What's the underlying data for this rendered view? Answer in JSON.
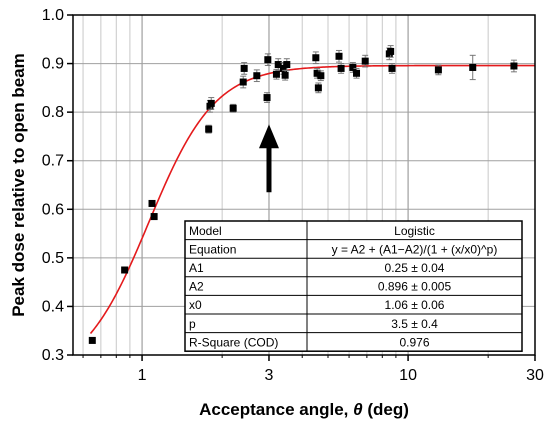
{
  "chart_data": {
    "type": "scatter",
    "title": "",
    "xlabel": "Acceptance angle, ",
    "xlabel_symbol": "θ",
    "xlabel_unit": " (deg)",
    "ylabel": "Peak dose relative to open beam",
    "x_scale": "log",
    "xlim": [
      0.55,
      30
    ],
    "ylim": [
      0.3,
      1.0
    ],
    "x_ticks": [
      {
        "value": 1,
        "label": "1"
      },
      {
        "value": 3,
        "label": "3"
      },
      {
        "value": 10,
        "label": "10"
      },
      {
        "value": 30,
        "label": "30"
      }
    ],
    "y_ticks": [
      {
        "value": 0.3,
        "label": "0.3"
      },
      {
        "value": 0.4,
        "label": "0.4"
      },
      {
        "value": 0.5,
        "label": "0.5"
      },
      {
        "value": 0.6,
        "label": "0.6"
      },
      {
        "value": 0.7,
        "label": "0.7"
      },
      {
        "value": 0.8,
        "label": "0.8"
      },
      {
        "value": 0.9,
        "label": "0.9"
      },
      {
        "value": 1.0,
        "label": "1.0"
      }
    ],
    "grid": true,
    "points": [
      {
        "x": 0.65,
        "y": 0.33,
        "err": 0.003
      },
      {
        "x": 0.86,
        "y": 0.475,
        "err": 0.004
      },
      {
        "x": 1.09,
        "y": 0.612,
        "err": 0.005
      },
      {
        "x": 1.11,
        "y": 0.585,
        "err": 0.006
      },
      {
        "x": 1.78,
        "y": 0.765,
        "err": 0.008
      },
      {
        "x": 1.8,
        "y": 0.812,
        "err": 0.012
      },
      {
        "x": 1.82,
        "y": 0.818,
        "err": 0.012
      },
      {
        "x": 2.2,
        "y": 0.808,
        "err": 0.008
      },
      {
        "x": 2.4,
        "y": 0.862,
        "err": 0.012
      },
      {
        "x": 2.42,
        "y": 0.89,
        "err": 0.012
      },
      {
        "x": 2.7,
        "y": 0.875,
        "err": 0.012
      },
      {
        "x": 2.95,
        "y": 0.83,
        "err": 0.01
      },
      {
        "x": 2.97,
        "y": 0.908,
        "err": 0.012
      },
      {
        "x": 3.2,
        "y": 0.878,
        "err": 0.01
      },
      {
        "x": 3.25,
        "y": 0.898,
        "err": 0.012
      },
      {
        "x": 3.4,
        "y": 0.89,
        "err": 0.012
      },
      {
        "x": 3.45,
        "y": 0.876,
        "err": 0.01
      },
      {
        "x": 3.5,
        "y": 0.898,
        "err": 0.012
      },
      {
        "x": 4.5,
        "y": 0.912,
        "err": 0.012
      },
      {
        "x": 4.55,
        "y": 0.88,
        "err": 0.01
      },
      {
        "x": 4.6,
        "y": 0.85,
        "err": 0.01
      },
      {
        "x": 4.7,
        "y": 0.875,
        "err": 0.01
      },
      {
        "x": 5.5,
        "y": 0.915,
        "err": 0.012
      },
      {
        "x": 5.6,
        "y": 0.89,
        "err": 0.01
      },
      {
        "x": 6.2,
        "y": 0.892,
        "err": 0.01
      },
      {
        "x": 6.4,
        "y": 0.88,
        "err": 0.01
      },
      {
        "x": 6.9,
        "y": 0.905,
        "err": 0.012
      },
      {
        "x": 8.5,
        "y": 0.92,
        "err": 0.012
      },
      {
        "x": 8.6,
        "y": 0.925,
        "err": 0.012
      },
      {
        "x": 8.7,
        "y": 0.89,
        "err": 0.01
      },
      {
        "x": 13,
        "y": 0.887,
        "err": 0.01
      },
      {
        "x": 17.5,
        "y": 0.892,
        "err": 0.025
      },
      {
        "x": 25,
        "y": 0.895,
        "err": 0.012
      }
    ],
    "fit": {
      "model": "logistic",
      "A1": 0.25,
      "A2": 0.896,
      "x0": 1.06,
      "p": 3.5,
      "color": "#e41a1c"
    },
    "marker_color": "#000000",
    "arrow": {
      "x": 3.0,
      "y_tip": 0.775,
      "y_tail": 0.635
    },
    "table": {
      "header": [
        "Model",
        "Logistic"
      ],
      "rows": [
        [
          "Equation",
          "y = A2 + (A1−A2)/(1 + (x/x0)^p)"
        ],
        [
          "A1",
          "0.25 ± 0.04"
        ],
        [
          "A2",
          "0.896 ± 0.005"
        ],
        [
          "x0",
          "1.06 ± 0.06"
        ],
        [
          "p",
          "3.5 ± 0.4"
        ],
        [
          "R-Square (COD)",
          "0.976"
        ]
      ]
    }
  }
}
